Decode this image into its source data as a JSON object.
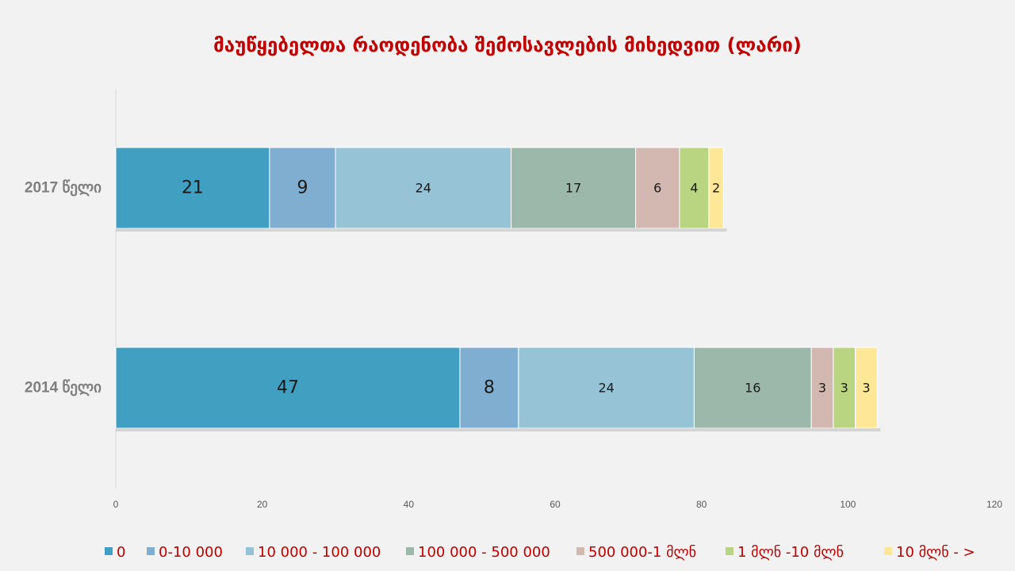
{
  "chart_data": {
    "type": "bar",
    "orientation": "horizontal",
    "stacked": true,
    "title": "მაუწყებელთა რაოდენობა შემოსავლების მიხედვით (ლარი)",
    "categories": [
      "2017 წელი",
      "2014 წელი"
    ],
    "series": [
      {
        "name": "0",
        "values": [
          21,
          47
        ],
        "color": "#419fc2"
      },
      {
        "name": "0-10 000",
        "values": [
          9,
          8
        ],
        "color": "#80aed0"
      },
      {
        "name": "10 000 - 100 000",
        "values": [
          24,
          24
        ],
        "color": "#96c4d6"
      },
      {
        "name": "100 000 - 500 000",
        "values": [
          17,
          16
        ],
        "color": "#9cb8aa"
      },
      {
        "name": "500 000-1 მლნ",
        "values": [
          6,
          3
        ],
        "color": "#d3b8b2"
      },
      {
        "name": "1 მლნ -10 მლნ",
        "values": [
          4,
          3
        ],
        "color": "#bad581"
      },
      {
        "name": "10 მლნ - >",
        "values": [
          2,
          3
        ],
        "color": "#fee898"
      }
    ],
    "xlim": [
      0,
      120
    ],
    "xticks": [
      0,
      20,
      40,
      60,
      80,
      100,
      120
    ],
    "grid": false,
    "legend": "bottom",
    "data_labels": true
  }
}
